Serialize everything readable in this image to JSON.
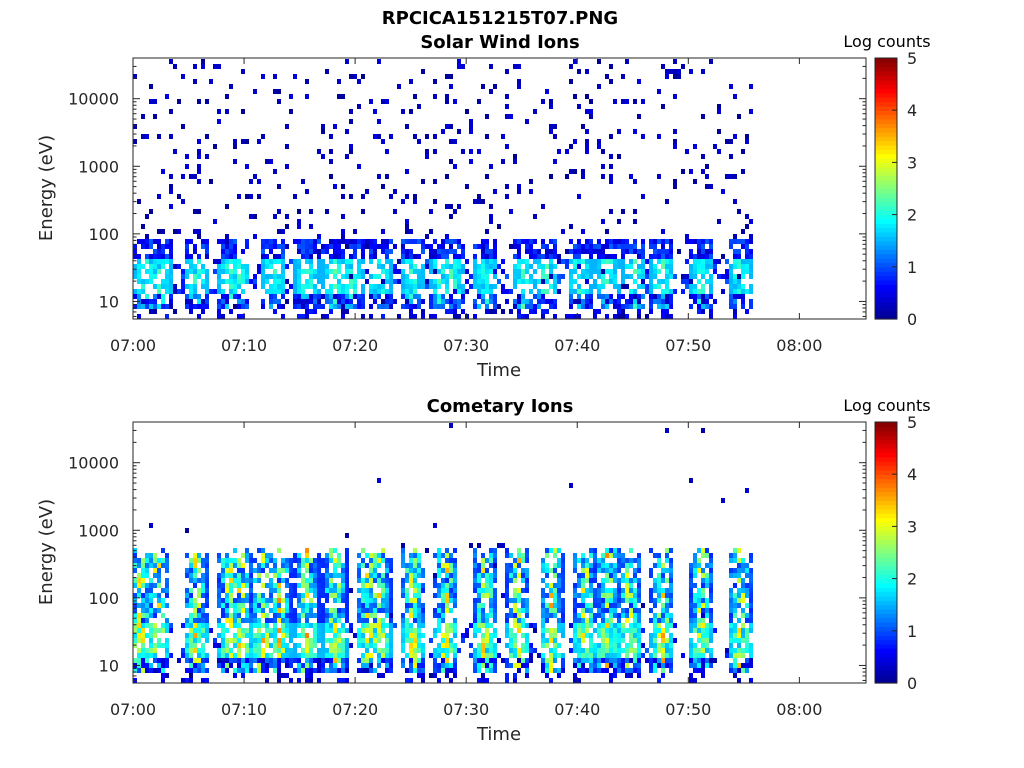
{
  "figure": {
    "main_title": "RPCICA151215T07.PNG"
  },
  "colormap": [
    "#00008f",
    "#0000ff",
    "#0080ff",
    "#00ffff",
    "#80ff80",
    "#ffff00",
    "#ff8000",
    "#ff0000",
    "#800000"
  ],
  "chart_data": [
    {
      "type": "heatmap",
      "title": "Solar Wind Ions",
      "xlabel": "Time",
      "ylabel": "Energy (eV)",
      "xlim": [
        "07:00",
        "08:06"
      ],
      "x_ticks": [
        "07:00",
        "07:10",
        "07:20",
        "07:30",
        "07:40",
        "07:50",
        "08:00"
      ],
      "y_scale": "log",
      "ylim": [
        5.5,
        40000
      ],
      "y_ticks": [
        "10",
        "100",
        "1000",
        "10000"
      ],
      "data_end": "07:56",
      "colorbar": {
        "label": "Log counts",
        "range": [
          0,
          5
        ],
        "ticks": [
          "0",
          "1",
          "2",
          "3",
          "4",
          "5"
        ]
      },
      "bursts_minutes": [
        1,
        2.3,
        5.5,
        8.5,
        9.3,
        12.5,
        15.5,
        18,
        19.5,
        22,
        25,
        27.5,
        28.5,
        31.5,
        35,
        37,
        40,
        42.5,
        45,
        47.5,
        51,
        54.5
      ],
      "description_counts": {
        "background_max": 1.2,
        "burst_max": 2.2
      }
    },
    {
      "type": "heatmap",
      "title": "Cometary Ions",
      "xlabel": "Time",
      "ylabel": "Energy (eV)",
      "xlim": [
        "07:00",
        "08:06"
      ],
      "x_ticks": [
        "07:00",
        "07:10",
        "07:20",
        "07:30",
        "07:40",
        "07:50",
        "08:00"
      ],
      "y_scale": "log",
      "ylim": [
        5.5,
        40000
      ],
      "y_ticks": [
        "10",
        "100",
        "1000",
        "10000"
      ],
      "data_end": "07:56",
      "colorbar": {
        "label": "Log counts",
        "range": [
          0,
          5
        ],
        "ticks": [
          "0",
          "1",
          "2",
          "3",
          "4",
          "5"
        ]
      },
      "bursts_minutes": [
        0.5,
        2,
        5.5,
        8.5,
        9.5,
        11.5,
        13,
        15.5,
        18,
        21,
        22,
        25,
        28,
        31.5,
        34.5,
        37.5,
        40.5,
        42.5,
        44.5,
        47.5,
        51,
        54.5
      ],
      "description_counts": {
        "background_max": 1.0,
        "burst_max": 3.6
      }
    }
  ]
}
